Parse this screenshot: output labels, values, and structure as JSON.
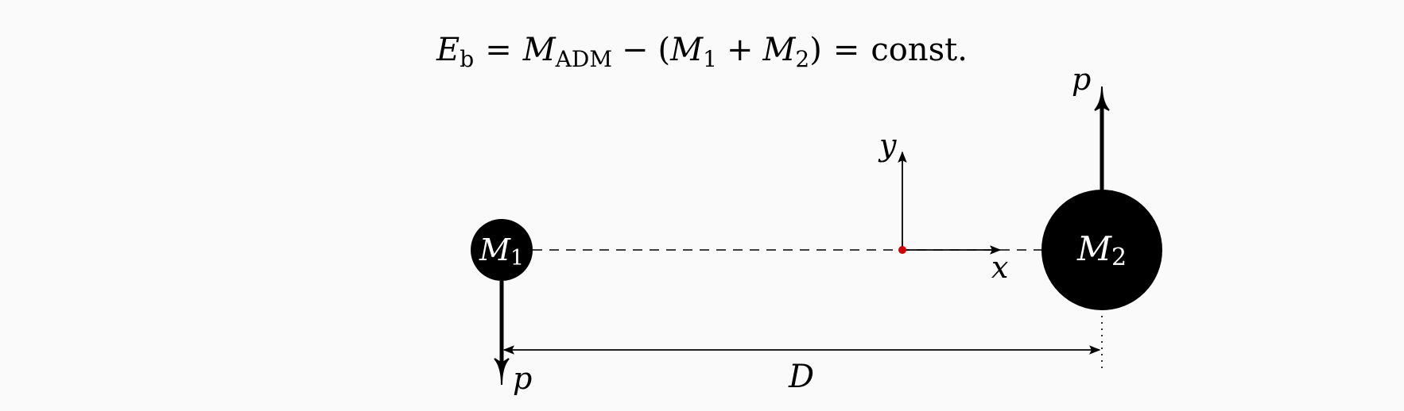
{
  "equation": {
    "lhs_symbol": "E",
    "lhs_subscript": "b",
    "eq1": "=",
    "adm_symbol": "M",
    "adm_subscript": "ADM",
    "minus": "−",
    "open_paren": "(",
    "m1_symbol": "M",
    "m1_subscript": "1",
    "plus": "+",
    "m2_symbol": "M",
    "m2_subscript": "2",
    "close_paren": ")",
    "eq2": "=",
    "rhs": "const."
  },
  "masses": {
    "m1": {
      "symbol": "M",
      "subscript": "1"
    },
    "m2": {
      "symbol": "M",
      "subscript": "2"
    }
  },
  "momenta": {
    "m1_label": "p",
    "m2_label": "p"
  },
  "axes": {
    "x_label": "x",
    "y_label": "y"
  },
  "separation": {
    "label": "D"
  },
  "colors": {
    "background": "#fafafa",
    "ink": "#000000",
    "origin": "#d00000",
    "mass_label": "#ffffff"
  }
}
